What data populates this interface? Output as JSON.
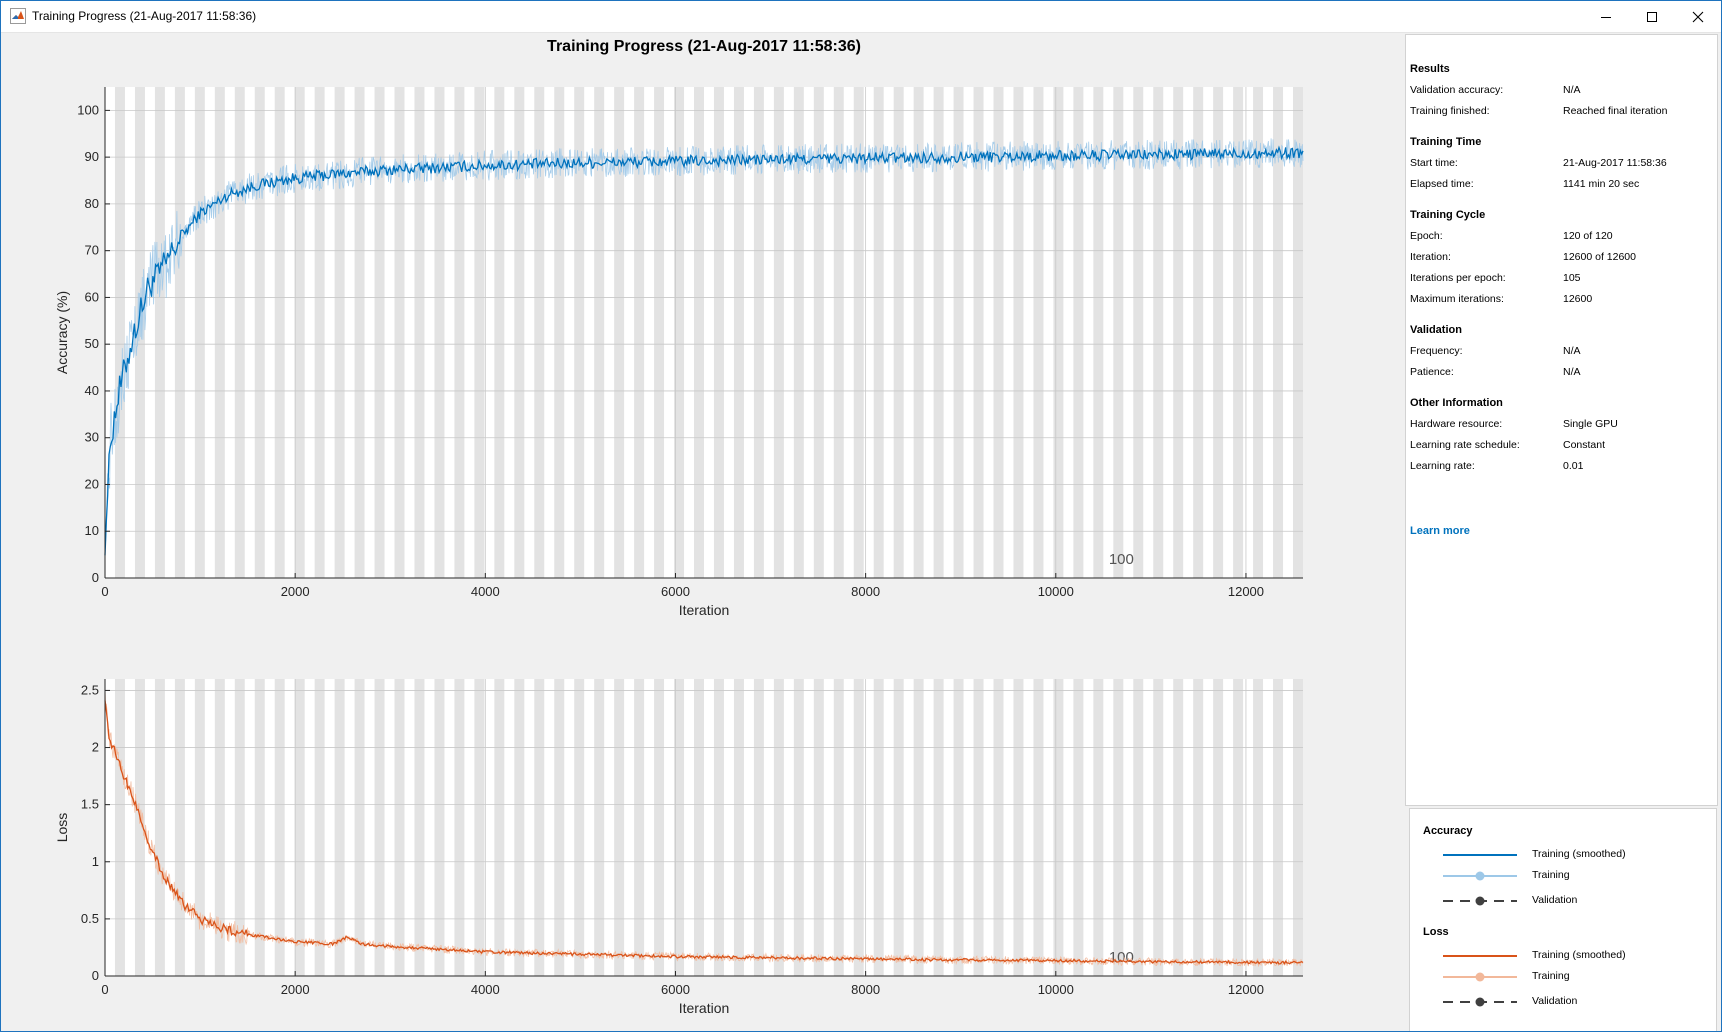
{
  "window": {
    "title": "Training Progress (21-Aug-2017 11:58:36)",
    "icons": [
      "matlab-logo-icon",
      "minimize-icon",
      "maximize-icon",
      "close-icon"
    ]
  },
  "figure_title": "Training Progress (21-Aug-2017 11:58:36)",
  "colors": {
    "accuracy_smoothed": "#0072bd",
    "accuracy_raw": "#9dc8e8",
    "loss_smoothed": "#d95319",
    "loss_raw": "#f2b89a",
    "validation": "#404040",
    "epoch_band": "#e3e3e3",
    "link": "#0072bd"
  },
  "chart_data": [
    {
      "type": "line",
      "name": "accuracy",
      "title": "",
      "xlabel": "Iteration",
      "ylabel": "Accuracy (%)",
      "xlim": [
        0,
        12600
      ],
      "ylim": [
        0,
        105
      ],
      "xticks": [
        0,
        2000,
        4000,
        6000,
        8000,
        10000,
        12000
      ],
      "yticks": [
        0,
        10,
        20,
        30,
        40,
        50,
        60,
        70,
        80,
        90,
        100
      ],
      "grid": true,
      "epoch_bands": true,
      "epoch_length": 105,
      "epoch_annotation": {
        "text": "100",
        "x": 10500
      },
      "series": [
        {
          "name": "Training (smoothed)",
          "x": [
            0,
            60,
            150,
            300,
            450,
            600,
            800,
            1000,
            1300,
            1600,
            2000,
            2500,
            3000,
            4000,
            5000,
            6000,
            7000,
            8000,
            9000,
            10000,
            11000,
            12000,
            12600
          ],
          "y": [
            8,
            30,
            40,
            52,
            62,
            66,
            73,
            78,
            82,
            84,
            85.5,
            86.5,
            87.3,
            88.2,
            88.8,
            89.1,
            89.5,
            89.8,
            90,
            90.3,
            90.5,
            90.8,
            91
          ]
        },
        {
          "name": "Training",
          "x": [
            0,
            60,
            150,
            300,
            450,
            600,
            800,
            1000,
            1300,
            1600,
            2000,
            2500,
            3000,
            4000,
            5000,
            6000,
            7000,
            8000,
            9000,
            10000,
            11000,
            12000,
            12600
          ],
          "y": [
            8,
            30,
            40,
            52,
            62,
            66,
            73,
            78,
            82,
            84,
            85.5,
            86.5,
            87.3,
            88.2,
            88.8,
            89.1,
            89.5,
            89.8,
            90,
            90.3,
            90.5,
            90.8,
            91
          ]
        }
      ]
    },
    {
      "type": "line",
      "name": "loss",
      "title": "",
      "xlabel": "Iteration",
      "ylabel": "Loss",
      "xlim": [
        0,
        12600
      ],
      "ylim": [
        0,
        2.6
      ],
      "xticks": [
        0,
        2000,
        4000,
        6000,
        8000,
        10000,
        12000
      ],
      "yticks": [
        0,
        0.5,
        1,
        1.5,
        2,
        2.5
      ],
      "grid": true,
      "epoch_bands": true,
      "epoch_length": 105,
      "epoch_annotation": {
        "text": "100",
        "x": 10500
      },
      "series": [
        {
          "name": "Training (smoothed)",
          "x": [
            0,
            40,
            150,
            300,
            450,
            600,
            800,
            1000,
            1300,
            1600,
            2000,
            2400,
            2550,
            2700,
            3000,
            4000,
            5000,
            6000,
            7000,
            8000,
            9000,
            10000,
            11000,
            12000,
            12600
          ],
          "y": [
            2.45,
            2.1,
            1.85,
            1.55,
            1.2,
            0.9,
            0.65,
            0.5,
            0.4,
            0.35,
            0.3,
            0.28,
            0.34,
            0.28,
            0.26,
            0.21,
            0.19,
            0.17,
            0.16,
            0.15,
            0.14,
            0.135,
            0.125,
            0.12,
            0.115
          ]
        },
        {
          "name": "Training",
          "x": [
            0,
            40,
            150,
            300,
            450,
            600,
            800,
            1000,
            1300,
            1600,
            2000,
            2400,
            2550,
            2700,
            3000,
            4000,
            5000,
            6000,
            7000,
            8000,
            9000,
            10000,
            11000,
            12000,
            12600
          ],
          "y": [
            2.45,
            2.1,
            1.85,
            1.55,
            1.2,
            0.9,
            0.65,
            0.5,
            0.4,
            0.35,
            0.3,
            0.28,
            0.34,
            0.28,
            0.26,
            0.21,
            0.19,
            0.17,
            0.16,
            0.15,
            0.14,
            0.135,
            0.125,
            0.12,
            0.115
          ]
        }
      ]
    }
  ],
  "info": {
    "sections": [
      {
        "title": "Results",
        "rows": [
          {
            "label": "Validation accuracy:",
            "value": "N/A"
          },
          {
            "label": "Training finished:",
            "value": "Reached final iteration"
          }
        ]
      },
      {
        "title": "Training Time",
        "rows": [
          {
            "label": "Start time:",
            "value": "21-Aug-2017 11:58:36"
          },
          {
            "label": "Elapsed time:",
            "value": "1141 min 20 sec"
          }
        ]
      },
      {
        "title": "Training Cycle",
        "rows": [
          {
            "label": "Epoch:",
            "value": "120 of 120"
          },
          {
            "label": "Iteration:",
            "value": "12600 of 12600"
          },
          {
            "label": "Iterations per epoch:",
            "value": "105"
          },
          {
            "label": "Maximum iterations:",
            "value": "12600"
          }
        ]
      },
      {
        "title": "Validation",
        "rows": [
          {
            "label": "Frequency:",
            "value": "N/A"
          },
          {
            "label": "Patience:",
            "value": "N/A"
          }
        ]
      },
      {
        "title": "Other Information",
        "rows": [
          {
            "label": "Hardware resource:",
            "value": "Single GPU"
          },
          {
            "label": "Learning rate schedule:",
            "value": "Constant"
          },
          {
            "label": "Learning rate:",
            "value": "0.01"
          }
        ]
      }
    ],
    "learn_more": "Learn more"
  },
  "legend": {
    "groups": [
      {
        "title": "Accuracy",
        "items": [
          {
            "label": "Training (smoothed)",
            "style": "solid",
            "color": "#0072bd"
          },
          {
            "label": "Training",
            "style": "dot",
            "color": "#9dc8e8"
          },
          {
            "label": "Validation",
            "style": "dash-dot",
            "color": "#404040"
          }
        ]
      },
      {
        "title": "Loss",
        "items": [
          {
            "label": "Training (smoothed)",
            "style": "solid",
            "color": "#d95319"
          },
          {
            "label": "Training",
            "style": "dot",
            "color": "#f2b89a"
          },
          {
            "label": "Validation",
            "style": "dash-dot",
            "color": "#404040"
          }
        ]
      }
    ]
  }
}
